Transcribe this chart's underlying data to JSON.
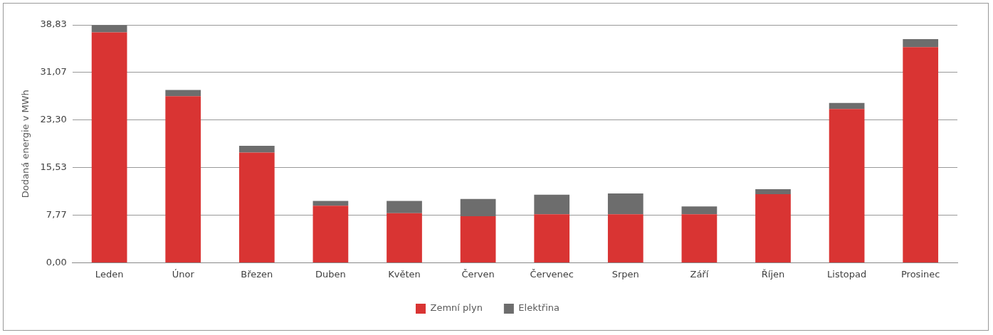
{
  "chart_data": {
    "type": "bar",
    "ylabel": "Dodaná energie v MWh",
    "categories": [
      "Leden",
      "Únor",
      "Březen",
      "Duben",
      "Květen",
      "Červen",
      "Červenec",
      "Srpen",
      "Září",
      "Říjen",
      "Listopad",
      "Prosinec"
    ],
    "series": [
      {
        "name": "Zemní plyn",
        "color": "#d93433",
        "values": [
          37.6,
          27.2,
          18.0,
          9.3,
          8.1,
          7.6,
          7.9,
          7.9,
          7.9,
          11.2,
          25.1,
          35.2
        ]
      },
      {
        "name": "Elektřina",
        "color": "#6d6d6d",
        "values": [
          1.2,
          1.0,
          1.1,
          0.8,
          2.0,
          2.8,
          3.2,
          3.4,
          1.3,
          0.8,
          1.0,
          1.3
        ]
      }
    ],
    "stacked": true,
    "ylim": [
      0,
      38.83
    ],
    "yticks": [
      {
        "value": 0,
        "label": "0,00"
      },
      {
        "value": 7.77,
        "label": "7,77"
      },
      {
        "value": 15.53,
        "label": "15,53"
      },
      {
        "value": 23.3,
        "label": "23,30"
      },
      {
        "value": 31.07,
        "label": "31,07"
      },
      {
        "value": 38.83,
        "label": "38,83"
      }
    ],
    "grid": "y",
    "legend": "bottom"
  }
}
